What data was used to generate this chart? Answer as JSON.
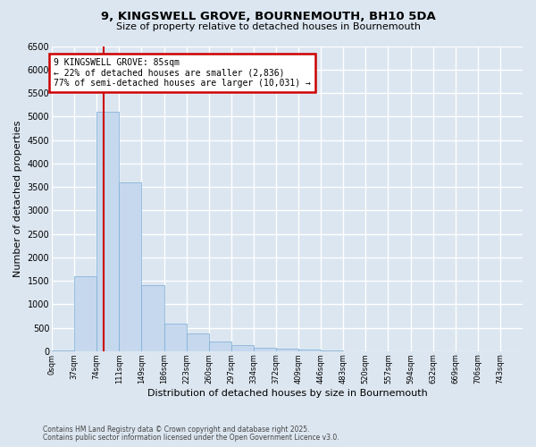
{
  "title": "9, KINGSWELL GROVE, BOURNEMOUTH, BH10 5DA",
  "subtitle": "Size of property relative to detached houses in Bournemouth",
  "xlabel": "Distribution of detached houses by size in Bournemouth",
  "ylabel": "Number of detached properties",
  "bar_color": "#c5d8ee",
  "bar_edge_color": "#7aadd4",
  "background_color": "#dce6f0",
  "grid_color": "#ffffff",
  "categories": [
    "0sqm",
    "37sqm",
    "74sqm",
    "111sqm",
    "149sqm",
    "186sqm",
    "223sqm",
    "260sqm",
    "297sqm",
    "334sqm",
    "372sqm",
    "409sqm",
    "446sqm",
    "483sqm",
    "520sqm",
    "557sqm",
    "594sqm",
    "632sqm",
    "669sqm",
    "706sqm",
    "743sqm"
  ],
  "values": [
    20,
    1600,
    5100,
    3600,
    1400,
    580,
    380,
    200,
    130,
    80,
    50,
    25,
    15,
    5,
    2,
    1,
    0,
    0,
    0,
    0,
    0
  ],
  "ylim": [
    0,
    6500
  ],
  "yticks": [
    0,
    500,
    1000,
    1500,
    2000,
    2500,
    3000,
    3500,
    4000,
    4500,
    5000,
    5500,
    6000,
    6500
  ],
  "property_label": "9 KINGSWELL GROVE: 85sqm",
  "annotation_line1": "← 22% of detached houses are smaller (2,836)",
  "annotation_line2": "77% of semi-detached houses are larger (10,031) →",
  "annotation_box_color": "#ffffff",
  "annotation_border_color": "#cc0000",
  "red_line_color": "#cc0000",
  "footnote1": "Contains HM Land Registry data © Crown copyright and database right 2025.",
  "footnote2": "Contains public sector information licensed under the Open Government Licence v3.0."
}
